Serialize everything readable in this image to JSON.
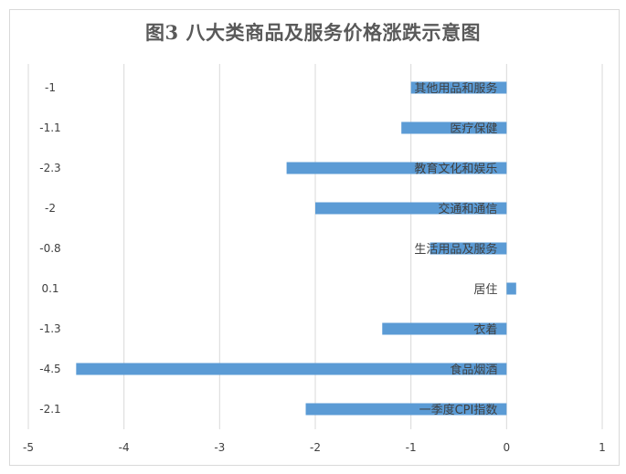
{
  "chart_data": {
    "type": "bar",
    "orientation": "horizontal",
    "title": "图3  八大类商品及服务价格涨跌示意图",
    "categories": [
      "其他用品和服务",
      "医疗保健",
      "教育文化和娱乐",
      "交通和通信",
      "生活用品及服务",
      "居住",
      "衣着",
      "食品烟酒",
      "一季度CPI指数"
    ],
    "values": [
      -1,
      -1.1,
      -2.3,
      -2,
      -0.8,
      0.1,
      -1.3,
      -4.5,
      -2.1
    ],
    "value_labels": [
      "-1",
      "-1.1",
      "-2.3",
      "-2",
      "-0.8",
      "0.1",
      "-1.3",
      "-4.5",
      "-2.1"
    ],
    "xlim": [
      -5,
      1
    ],
    "xticks": [
      "-5",
      "-4",
      "-3",
      "-2",
      "-1",
      "0",
      "1"
    ],
    "grid": "vertical",
    "legend": "none",
    "bar_color": "#5b9bd5",
    "grid_color": "#d9d9d9"
  }
}
